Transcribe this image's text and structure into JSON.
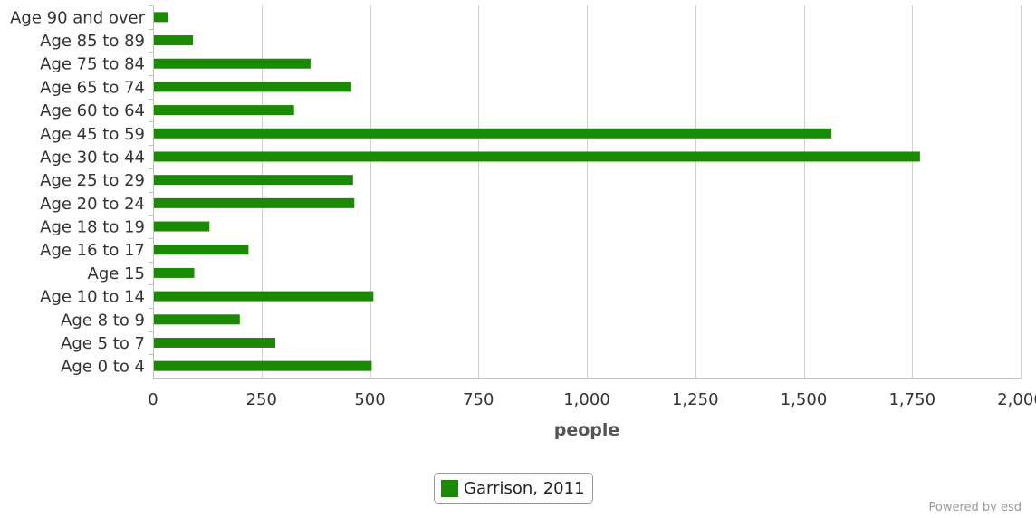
{
  "chart_data": {
    "type": "bar",
    "orientation": "horizontal",
    "categories": [
      "Age 90 and over",
      "Age 85 to 89",
      "Age 75 to 84",
      "Age 65 to 74",
      "Age 60 to 64",
      "Age 45 to 59",
      "Age 30 to 44",
      "Age 25 to 29",
      "Age 20 to 24",
      "Age 18 to 19",
      "Age 16 to 17",
      "Age 15",
      "Age 10 to 14",
      "Age 8 to 9",
      "Age 5 to 7",
      "Age 0 to 4"
    ],
    "series": [
      {
        "name": "Garrison, 2011",
        "color": "#1a8a00",
        "values": [
          34,
          92,
          363,
          457,
          325,
          1564,
          1768,
          461,
          464,
          130,
          220,
          95,
          508,
          200,
          282,
          504
        ]
      }
    ],
    "xlabel": "people",
    "ylabel": "",
    "xlim": [
      0,
      2000
    ],
    "xticks": [
      0,
      250,
      500,
      750,
      1000,
      1250,
      1500,
      1750,
      2000
    ],
    "xtick_labels": [
      "0",
      "250",
      "500",
      "750",
      "1,000",
      "1,250",
      "1,500",
      "1,750",
      "2,000"
    ],
    "grid": true,
    "legend_position": "bottom-center"
  },
  "legend": {
    "label": "Garrison, 2011"
  },
  "credit": "Powered by esd"
}
